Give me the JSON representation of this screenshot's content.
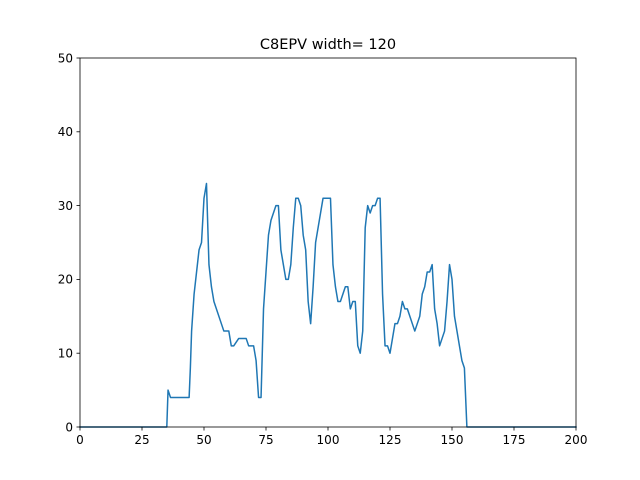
{
  "chart_data": {
    "type": "line",
    "title": "C8EPV width= 120",
    "xlabel": "",
    "ylabel": "",
    "xlim": [
      0,
      200
    ],
    "ylim": [
      0,
      50
    ],
    "xticks": [
      0,
      25,
      50,
      75,
      100,
      125,
      150,
      175,
      200
    ],
    "yticks": [
      0,
      10,
      20,
      30,
      40,
      50
    ],
    "grid": false,
    "line_color": "#1f77b4",
    "series": [
      {
        "x": [
          0,
          35,
          35.5,
          36.5,
          44,
          44.5,
          45,
          46,
          48,
          49,
          50,
          51,
          52,
          53,
          54,
          57,
          58,
          59,
          60,
          61,
          62,
          64,
          66,
          67,
          68,
          69,
          70,
          71,
          72,
          73,
          74,
          75,
          76,
          77,
          78,
          79,
          80,
          81,
          82,
          83,
          84,
          85,
          86,
          87,
          88,
          89,
          90,
          91,
          92,
          93,
          94,
          95,
          96,
          97,
          98,
          99,
          100,
          101,
          102,
          103,
          104,
          105,
          106,
          107,
          108,
          109,
          110,
          111,
          112,
          113,
          114,
          115,
          116,
          117,
          118,
          119,
          120,
          121,
          122,
          123,
          124,
          125,
          126,
          127,
          128,
          129,
          130,
          131,
          132,
          133,
          134,
          135,
          136,
          137,
          138,
          139,
          140,
          141,
          142,
          143,
          144,
          145,
          146,
          147,
          148,
          149,
          150,
          151,
          152,
          153,
          154,
          155,
          156,
          200
        ],
        "y": [
          0,
          0,
          5,
          4,
          4,
          8,
          13,
          18,
          24,
          25,
          31,
          33,
          22,
          19,
          17,
          14,
          13,
          13,
          13,
          11,
          11,
          12,
          12,
          12,
          11,
          11,
          11,
          9,
          4,
          4,
          16,
          21,
          26,
          28,
          29,
          30,
          30,
          24,
          22,
          20,
          20,
          22,
          27,
          31,
          31,
          30,
          26,
          24,
          17,
          14,
          19,
          25,
          27,
          29,
          31,
          31,
          31,
          31,
          22,
          19,
          17,
          17,
          18,
          19,
          19,
          16,
          17,
          17,
          11,
          10,
          13,
          27,
          30,
          29,
          30,
          30,
          31,
          31,
          18,
          11,
          11,
          10,
          12,
          14,
          14,
          15,
          17,
          16,
          16,
          15,
          14,
          13,
          14,
          15,
          18,
          19,
          21,
          21,
          22,
          16,
          14,
          11,
          12,
          13,
          17,
          22,
          20,
          15,
          13,
          11,
          9,
          8,
          0,
          0
        ]
      }
    ]
  }
}
